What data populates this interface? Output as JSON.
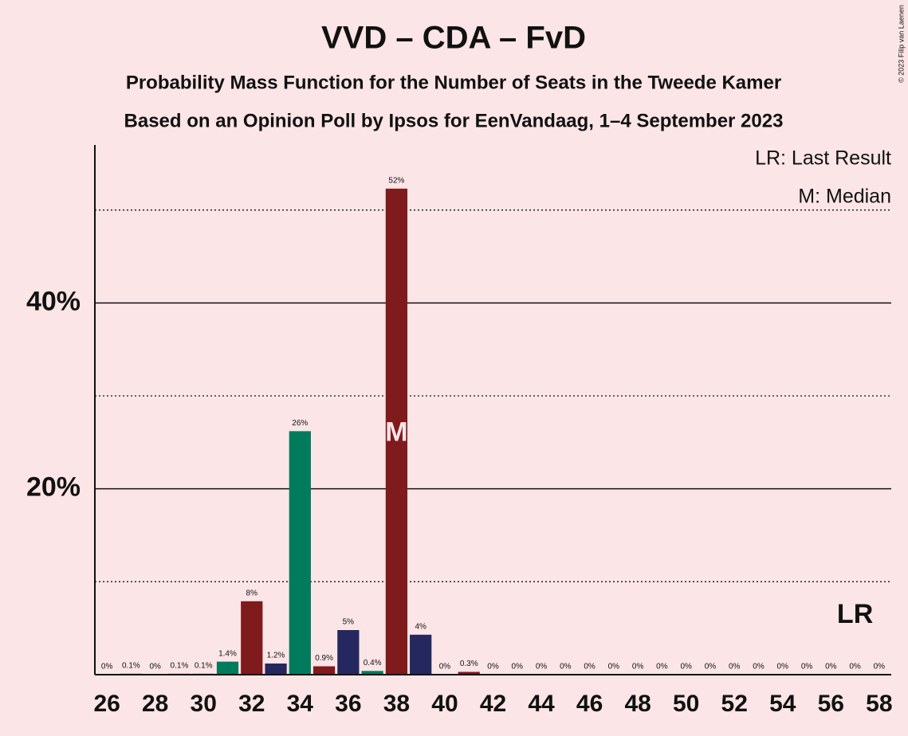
{
  "chart_data": {
    "type": "bar",
    "title": "VVD – CDA – FvD",
    "subtitle": "Probability Mass Function for the Number of Seats in the Tweede Kamer",
    "subtitle2": "Based on an Opinion Poll by Ipsos for EenVandaag, 1–4 September 2023",
    "copyright": "© 2023 Filip van Laenen",
    "legend": [
      "LR: Last Result",
      "M: Median"
    ],
    "categories": [
      26,
      null,
      28,
      null,
      30,
      null,
      32,
      null,
      34,
      null,
      36,
      null,
      38,
      null,
      40,
      null,
      42,
      null,
      44,
      null,
      46,
      null,
      48,
      null,
      50,
      null,
      52,
      null,
      54,
      null,
      56,
      null,
      58
    ],
    "values": [
      0,
      0.1,
      0,
      0.1,
      0.1,
      1.4,
      7.9,
      1.2,
      26.2,
      0.9,
      4.8,
      0.4,
      52.3,
      4.3,
      0,
      0.3,
      0,
      0,
      0,
      0,
      0,
      0,
      0,
      0,
      0,
      0,
      0,
      0,
      0,
      0,
      0,
      0,
      0
    ],
    "value_labels": [
      "0%",
      "0.1%",
      "0%",
      "0.1%",
      "0.1%",
      "1.4%",
      "8%",
      "1.2%",
      "26%",
      "0.9%",
      "5%",
      "0.4%",
      "52%",
      "4%",
      "0%",
      "0.3%",
      "0%",
      "0%",
      "0%",
      "0%",
      "0%",
      "0%",
      "0%",
      "0%",
      "0%",
      "0%",
      "0%",
      "0%",
      "0%",
      "0%",
      "0%",
      "0%",
      "0%"
    ],
    "colors": [
      "#7f1a1d",
      "#25285f",
      "#007b5c"
    ],
    "median_label": "M",
    "median_index": 12,
    "last_result_label": "LR",
    "last_result_index": 31,
    "ylim": [
      0,
      57
    ],
    "yticks": [
      {
        "value": 20,
        "label": "20%"
      },
      {
        "value": 40,
        "label": "40%"
      }
    ],
    "minor_grid": [
      10,
      30,
      50
    ]
  }
}
